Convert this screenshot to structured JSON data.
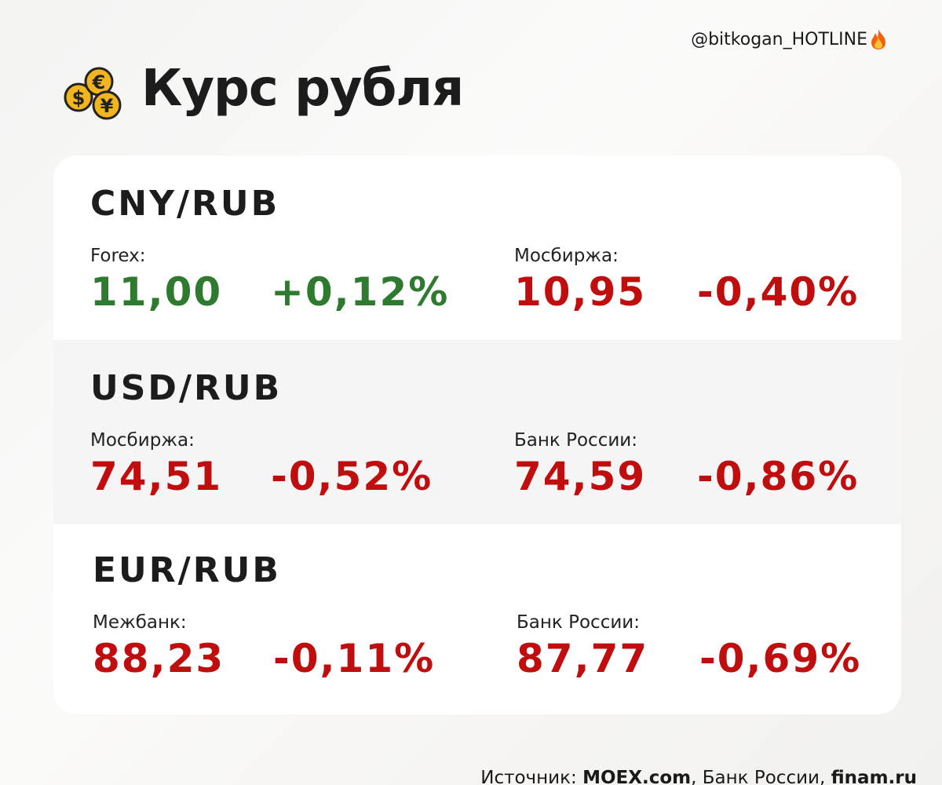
{
  "header": {
    "handle": "@bitkogan_HOTLINE",
    "title": "Курс рубля"
  },
  "sections": [
    {
      "pair": "CNY/RUB",
      "quotes": [
        {
          "label": "Forex:",
          "value": "11,00",
          "change": "+0,12%",
          "color": "#2e7a2e"
        },
        {
          "label": "Мосбиржа:",
          "value": "10,95",
          "change": "-0,40%",
          "color": "#c00d0d"
        }
      ]
    },
    {
      "pair": "USD/RUB",
      "quotes": [
        {
          "label": "Мосбиржа:",
          "value": "74,51",
          "change": "-0,52%",
          "color": "#c00d0d"
        },
        {
          "label": "Банк России:",
          "value": "74,59",
          "change": "-0,86%",
          "color": "#c00d0d"
        }
      ]
    },
    {
      "pair": "EUR/RUB",
      "quotes": [
        {
          "label": "Межбанк:",
          "value": "88,23",
          "change": "-0,11%",
          "color": "#c00d0d"
        },
        {
          "label": "Банк России:",
          "value": "87,77",
          "change": "-0,69%",
          "color": "#c00d0d"
        }
      ]
    }
  ],
  "source": {
    "parts": [
      "Источник: ",
      "MOEX.com",
      ", Банк России, ",
      "finam.ru"
    ]
  }
}
